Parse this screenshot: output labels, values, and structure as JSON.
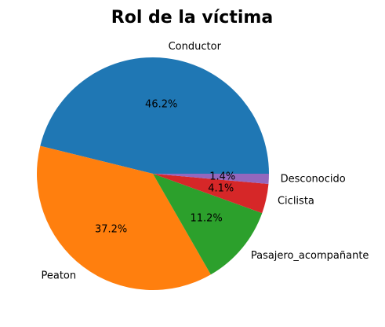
{
  "chart_data": {
    "type": "pie",
    "title": "Rol de la víctima",
    "categories": [
      "Conductor",
      "Peaton",
      "Pasajero_acompañante",
      "Ciclista",
      "Desconocido"
    ],
    "values": [
      46.2,
      37.2,
      11.2,
      4.1,
      1.4
    ],
    "value_labels": [
      "46.2%",
      "37.2%",
      "11.2%",
      "4.1%",
      "1.4%"
    ],
    "colors": [
      "#1f77b4",
      "#ff7f0e",
      "#2ca02c",
      "#d62728",
      "#9467bd"
    ],
    "start_angle_deg": 0,
    "direction": "counterclockwise",
    "legend": "none"
  }
}
